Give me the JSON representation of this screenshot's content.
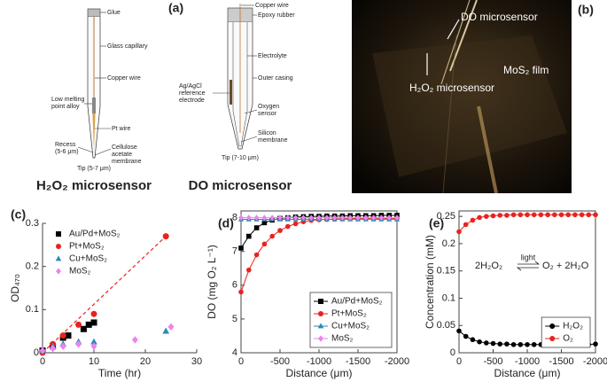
{
  "panel_a": {
    "label": "(a)",
    "h2o2_sensor": {
      "title": "H₂O₂ microsensor",
      "labels": [
        [
          "Glue"
        ],
        [
          "Glass capillary"
        ],
        [
          "Copper wire"
        ],
        [
          "Low melting",
          "point alloy"
        ],
        [
          "Pt wire"
        ],
        [
          "Recess",
          "(5-6 μm)"
        ],
        [
          "Cellulose",
          "acetate",
          "membrane"
        ],
        [
          "Tip (5-7 μm)"
        ]
      ]
    },
    "do_sensor": {
      "title": "DO microsensor",
      "labels": [
        [
          "Copper wire"
        ],
        [
          "Epoxy rubber"
        ],
        [
          "Electrolyte"
        ],
        [
          "Ag/AgCl",
          "reference",
          "electrode"
        ],
        [
          "Outer casing"
        ],
        [
          "Oxygen",
          "sensor"
        ],
        [
          "Silicon",
          "membrane"
        ],
        [
          "Tip (7-10 μm)"
        ]
      ]
    }
  },
  "panel_b": {
    "label": "(b)",
    "labels": [
      "DO microsensor",
      "H₂O₂ microsensor",
      "MoS₂ film"
    ]
  },
  "chart_data": [
    {
      "type": "scatter",
      "label": "(c)",
      "x_label": "Time (hr)",
      "y_label": "OD₄₇₀",
      "xlim": [
        0,
        30
      ],
      "xticks": [
        0,
        10,
        20,
        30
      ],
      "ylim": [
        0,
        0.3
      ],
      "yticks": [
        0,
        0.1,
        0.2,
        0.3
      ],
      "legend": "upper left",
      "legend_box": false,
      "frame": false,
      "series": [
        {
          "name": "Au/Pd+MoS₂",
          "color": "#000000",
          "marker": "square",
          "x": [
            0,
            2,
            4,
            5,
            8,
            9,
            10
          ],
          "values": [
            0.005,
            0.015,
            0.035,
            0.04,
            0.055,
            0.065,
            0.07
          ]
        },
        {
          "name": "Pt+MoS₂",
          "color": "#e8231f",
          "marker": "circle",
          "x": [
            0,
            2,
            4,
            7,
            10,
            24
          ],
          "values": [
            0,
            0.02,
            0.04,
            0.065,
            0.09,
            0.27
          ]
        },
        {
          "name": "Cu+MoS₂",
          "color": "#2a8ab8",
          "marker": "triangle",
          "x": [
            0,
            2,
            4,
            7,
            10,
            24
          ],
          "values": [
            0.005,
            0.015,
            0.02,
            0.025,
            0.025,
            0.05
          ]
        },
        {
          "name": "MoS₂",
          "color": "#ee82ee",
          "marker": "diamond",
          "x": [
            0,
            2,
            4,
            7,
            10,
            18,
            25
          ],
          "values": [
            0.005,
            0.01,
            0.015,
            0.02,
            0.015,
            0.03,
            0.06
          ]
        }
      ],
      "trendline": {
        "color": "#e8231f",
        "x": [
          0,
          24
        ],
        "values": [
          0,
          0.27
        ]
      }
    },
    {
      "type": "line",
      "label": "(d)",
      "x_label": "Distance (μm)",
      "y_label": "DO (mg O₂ L⁻¹)",
      "xlim": [
        0,
        -2000
      ],
      "xticks": [
        0,
        -500,
        -1000,
        -1500,
        -2000
      ],
      "ylim": [
        4,
        8.2
      ],
      "yticks": [
        4,
        5,
        6,
        7,
        8
      ],
      "legend": "lower right",
      "legend_box": true,
      "frame": true,
      "x": [
        0,
        -100,
        -200,
        -300,
        -400,
        -500,
        -600,
        -700,
        -800,
        -900,
        -1000,
        -1100,
        -1200,
        -1300,
        -1400,
        -1500,
        -1600,
        -1700,
        -1800,
        -1900,
        -2000
      ],
      "series": [
        {
          "name": "Au/Pd+MoS₂",
          "color": "#000000",
          "marker": "square",
          "values": [
            7.1,
            7.45,
            7.7,
            7.85,
            7.93,
            7.98,
            8.0,
            8.02,
            8.03,
            8.04,
            8.04,
            8.05,
            8.05,
            8.05,
            8.06,
            8.06,
            8.06,
            8.06,
            8.07,
            8.07,
            8.07
          ]
        },
        {
          "name": "Pt+MoS₂",
          "color": "#e8231f",
          "marker": "circle",
          "values": [
            5.8,
            6.45,
            6.9,
            7.22,
            7.45,
            7.62,
            7.74,
            7.82,
            7.88,
            7.92,
            7.94,
            7.95,
            7.96,
            7.97,
            7.97,
            7.98,
            7.98,
            7.98,
            7.98,
            7.98,
            7.98
          ]
        },
        {
          "name": "Cu+MoS₂",
          "color": "#2a8ab8",
          "marker": "triangle",
          "values": [
            7.95,
            7.95,
            7.95,
            7.95,
            7.95,
            7.95,
            7.95,
            7.95,
            7.95,
            7.95,
            7.95,
            7.95,
            7.95,
            7.95,
            7.95,
            7.95,
            7.95,
            7.95,
            7.95,
            7.95,
            7.95
          ]
        },
        {
          "name": "MoS₂",
          "color": "#ee82ee",
          "marker": "diamond",
          "values": [
            8.0,
            8.0,
            8.0,
            8.0,
            8.0,
            8.0,
            8.0,
            8.0,
            8.0,
            8.0,
            8.0,
            8.0,
            8.0,
            8.0,
            8.0,
            8.0,
            8.0,
            8.0,
            8.0,
            8.0,
            8.0
          ]
        }
      ]
    },
    {
      "type": "line",
      "label": "(e)",
      "x_label": "Distance (μm)",
      "y_label": "Concentration (mM)",
      "xlim": [
        0,
        -2000
      ],
      "xticks": [
        0,
        -500,
        -1000,
        -1500,
        -2000
      ],
      "ylim": [
        0,
        0.26
      ],
      "yticks": [
        0,
        0.05,
        0.1,
        0.15,
        0.2,
        0.25
      ],
      "legend": "lower right",
      "legend_box": true,
      "frame": true,
      "annotation": {
        "left": "2H₂O₂",
        "above_arrow": "light",
        "right": "O₂ + 2H₂O"
      },
      "x": [
        0,
        -100,
        -200,
        -300,
        -400,
        -500,
        -600,
        -700,
        -800,
        -900,
        -1000,
        -1100,
        -1200,
        -1300,
        -1400,
        -1500,
        -1600,
        -1700,
        -1800,
        -1900,
        -2000
      ],
      "series": [
        {
          "name": "H₂O₂",
          "color": "#000000",
          "marker": "circle",
          "values": [
            0.04,
            0.03,
            0.024,
            0.02,
            0.018,
            0.017,
            0.016,
            0.016,
            0.015,
            0.015,
            0.015,
            0.015,
            0.015,
            0.015,
            0.015,
            0.015,
            0.015,
            0.015,
            0.015,
            0.015,
            0.016
          ]
        },
        {
          "name": "O₂",
          "color": "#e8231f",
          "marker": "circle",
          "values": [
            0.222,
            0.235,
            0.243,
            0.248,
            0.25,
            0.251,
            0.252,
            0.252,
            0.253,
            0.253,
            0.253,
            0.253,
            0.253,
            0.253,
            0.253,
            0.253,
            0.253,
            0.253,
            0.253,
            0.253,
            0.253
          ]
        }
      ]
    }
  ]
}
